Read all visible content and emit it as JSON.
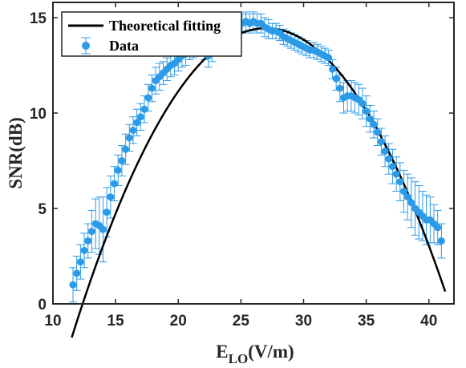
{
  "chart_data": {
    "type": "scatter",
    "xlabel_main": "E",
    "xlabel_sub": "LO",
    "xlabel_unit": "(V/m)",
    "ylabel": "SNR(dB)",
    "xlim": [
      10,
      42
    ],
    "ylim": [
      0,
      15.8
    ],
    "xticks": [
      "10",
      "15",
      "20",
      "25",
      "30",
      "35",
      "40"
    ],
    "yticks": [
      "0",
      "5",
      "10",
      "15"
    ],
    "legend_position": "top-left",
    "colors": {
      "data": "#2b9be8",
      "fit": "#000000",
      "axis": "#262626"
    },
    "series": [
      {
        "name": "Theoretical fitting",
        "kind": "line",
        "fit": {
          "vertex_x": 27.0,
          "vertex_y": 14.45,
          "curvature": 0.0675
        },
        "x_range": [
          11.5,
          41.3
        ]
      },
      {
        "name": "Data",
        "kind": "errorbar",
        "x": [
          11.6,
          11.9,
          12.2,
          12.5,
          12.8,
          13.1,
          13.4,
          13.7,
          14.0,
          14.3,
          14.6,
          14.9,
          15.2,
          15.5,
          15.8,
          16.1,
          16.4,
          16.7,
          17.0,
          17.3,
          17.6,
          17.9,
          18.2,
          18.5,
          18.8,
          19.1,
          19.4,
          19.7,
          20.0,
          20.3,
          20.6,
          20.9,
          21.2,
          21.5,
          21.8,
          22.1,
          22.4,
          22.7,
          23.0,
          23.3,
          23.6,
          23.9,
          24.2,
          24.5,
          24.8,
          25.1,
          25.4,
          25.7,
          26.0,
          26.3,
          26.6,
          26.9,
          27.2,
          27.5,
          27.8,
          28.1,
          28.4,
          28.7,
          29.0,
          29.3,
          29.6,
          29.9,
          30.2,
          30.5,
          30.8,
          31.1,
          31.4,
          31.7,
          32.0,
          32.3,
          32.6,
          32.9,
          33.2,
          33.5,
          33.8,
          34.1,
          34.4,
          34.7,
          35.0,
          35.3,
          35.6,
          35.9,
          36.2,
          36.5,
          36.8,
          37.1,
          37.4,
          37.7,
          38.0,
          38.3,
          38.6,
          38.9,
          39.2,
          39.5,
          39.8,
          40.1,
          40.4,
          40.7,
          41.0
        ],
        "y": [
          1.0,
          1.6,
          2.2,
          2.8,
          3.3,
          3.8,
          4.2,
          4.1,
          3.9,
          4.8,
          5.6,
          6.3,
          7.0,
          7.5,
          8.1,
          8.7,
          9.1,
          9.5,
          9.8,
          10.2,
          10.8,
          11.3,
          11.7,
          11.9,
          12.1,
          12.3,
          12.5,
          12.6,
          12.8,
          13.0,
          13.1,
          13.3,
          13.4,
          13.5,
          13.5,
          13.3,
          13.0,
          13.2,
          13.6,
          13.9,
          14.1,
          14.3,
          14.4,
          14.5,
          14.6,
          14.7,
          14.8,
          14.7,
          14.8,
          14.7,
          14.7,
          14.5,
          14.4,
          14.3,
          14.3,
          14.2,
          14.0,
          13.9,
          13.8,
          13.7,
          13.6,
          13.5,
          13.4,
          13.3,
          13.3,
          13.2,
          13.1,
          13.0,
          12.9,
          12.3,
          11.8,
          11.3,
          10.8,
          10.9,
          10.9,
          10.8,
          10.7,
          10.5,
          10.1,
          9.7,
          9.4,
          9.0,
          8.5,
          8.0,
          7.6,
          7.2,
          6.8,
          6.4,
          5.9,
          5.6,
          5.3,
          5.0,
          4.8,
          4.6,
          4.4,
          4.4,
          4.2,
          4.0,
          3.3
        ],
        "err": [
          0.9,
          0.9,
          0.9,
          0.9,
          0.9,
          1.1,
          1.3,
          1.5,
          1.7,
          1.3,
          1.1,
          0.9,
          0.8,
          0.8,
          0.8,
          0.7,
          0.7,
          0.7,
          0.7,
          0.7,
          0.7,
          0.7,
          0.7,
          0.7,
          0.6,
          0.6,
          0.6,
          0.6,
          0.6,
          0.6,
          0.6,
          0.5,
          0.5,
          0.5,
          0.5,
          0.5,
          0.6,
          0.5,
          0.5,
          0.5,
          0.5,
          0.4,
          0.4,
          0.4,
          0.4,
          0.5,
          0.5,
          0.5,
          0.5,
          0.5,
          0.5,
          0.5,
          0.5,
          0.4,
          0.4,
          0.4,
          0.4,
          0.4,
          0.4,
          0.4,
          0.4,
          0.4,
          0.4,
          0.4,
          0.4,
          0.4,
          0.4,
          0.4,
          0.4,
          0.5,
          0.6,
          0.7,
          0.8,
          0.8,
          0.8,
          0.8,
          0.8,
          0.8,
          0.8,
          0.7,
          0.7,
          0.7,
          0.7,
          0.8,
          0.8,
          0.9,
          0.9,
          1.0,
          1.1,
          1.2,
          1.3,
          1.4,
          1.4,
          1.3,
          1.3,
          1.2,
          1.0,
          0.9,
          0.9
        ]
      }
    ]
  }
}
